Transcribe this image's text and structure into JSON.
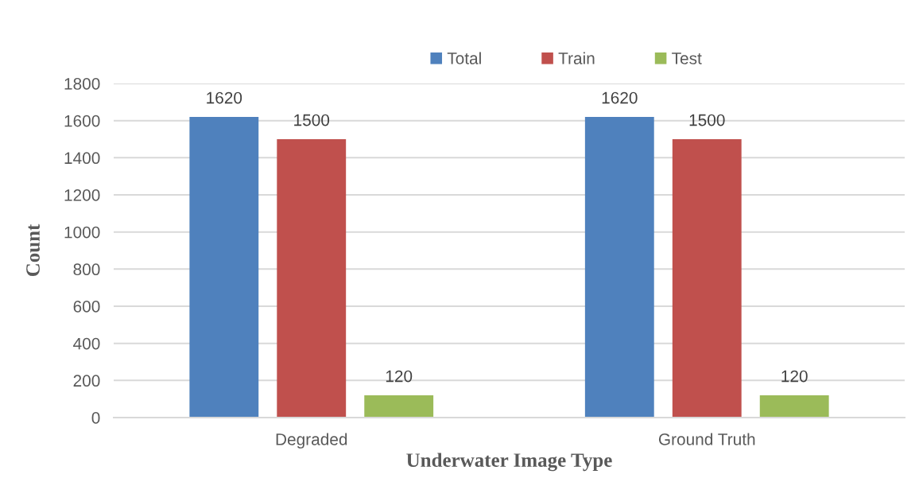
{
  "chart_data": {
    "type": "bar",
    "xlabel": "Underwater Image Type",
    "ylabel": "Count",
    "categories": [
      "Degraded",
      "Ground Truth"
    ],
    "series": [
      {
        "name": "Total",
        "color": "#4f81bd",
        "values": [
          1620,
          1620
        ]
      },
      {
        "name": "Train",
        "color": "#c0504d",
        "values": [
          1500,
          1500
        ]
      },
      {
        "name": "Test",
        "color": "#9bbb59",
        "values": [
          120,
          120
        ]
      }
    ],
    "ylim": [
      0,
      1800
    ],
    "yticks": [
      0,
      200,
      400,
      600,
      800,
      1000,
      1200,
      1400,
      1600,
      1800
    ],
    "grid": "y",
    "legend": "top",
    "data_labels": true
  }
}
